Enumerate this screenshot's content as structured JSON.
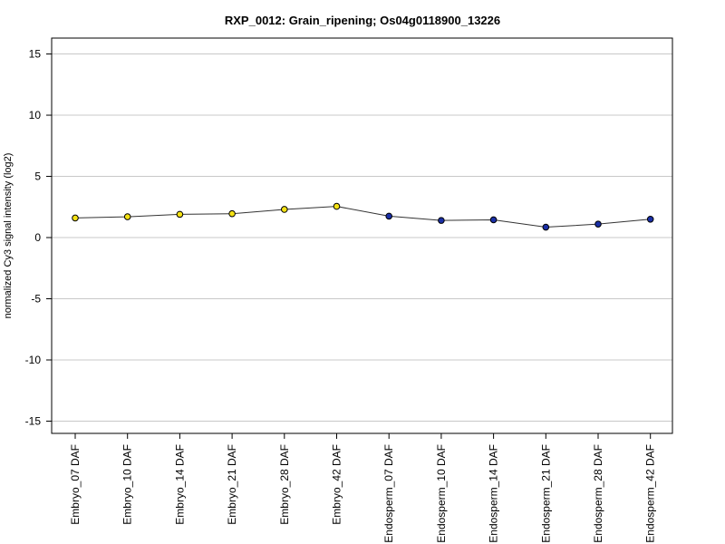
{
  "chart_data": {
    "type": "line",
    "title": "RXP_0012: Grain_ripening; Os04g0118900_13226",
    "xlabel": "",
    "ylabel": "normalized Cy3 signal intensity (log2)",
    "ylim": [
      -16,
      16.3
    ],
    "yticks": [
      15,
      10,
      5,
      0,
      -5,
      -10,
      -15
    ],
    "grid": true,
    "categories": [
      "Embryo_07 DAF",
      "Embryo_10 DAF",
      "Embryo_14 DAF",
      "Embryo_21 DAF",
      "Embryo_28 DAF",
      "Embryo_42 DAF",
      "Endosperm_07 DAF",
      "Endosperm_10 DAF",
      "Endosperm_14 DAF",
      "Endosperm_21 DAF",
      "Endosperm_28 DAF",
      "Endosperm_42 DAF"
    ],
    "values": [
      1.6,
      1.7,
      1.9,
      1.95,
      2.3,
      2.55,
      1.75,
      1.4,
      1.45,
      0.85,
      1.1,
      1.5
    ],
    "point_colors": [
      "#f5e214",
      "#f5e214",
      "#f5e214",
      "#f5e214",
      "#f5e214",
      "#f5e214",
      "#1a2fa6",
      "#1a2fa6",
      "#1a2fa6",
      "#1a2fa6",
      "#1a2fa6",
      "#1a2fa6"
    ],
    "line_color": "#333333"
  }
}
